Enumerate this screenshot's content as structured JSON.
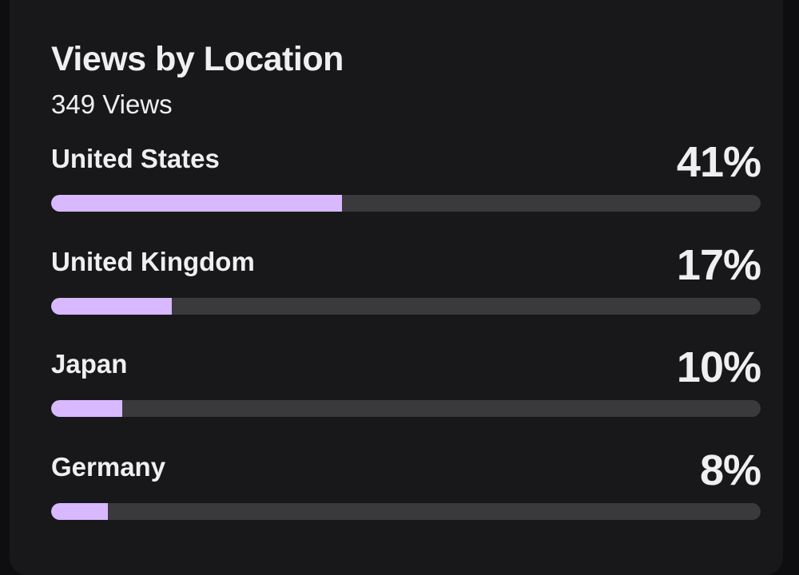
{
  "card": {
    "title": "Views by Location",
    "subtitle": "349 Views"
  },
  "locations": [
    {
      "name": "United States",
      "percent_label": "41%",
      "fraction": 0.41
    },
    {
      "name": "United Kingdom",
      "percent_label": "17%",
      "fraction": 0.17
    },
    {
      "name": "Japan",
      "percent_label": "10%",
      "fraction": 0.1
    },
    {
      "name": "Germany",
      "percent_label": "8%",
      "fraction": 0.08
    }
  ],
  "colors": {
    "bar_fill": "#d8b8ff",
    "bar_track": "#3a3a3d",
    "card_background": "#18181b",
    "text": "#efeff1"
  }
}
